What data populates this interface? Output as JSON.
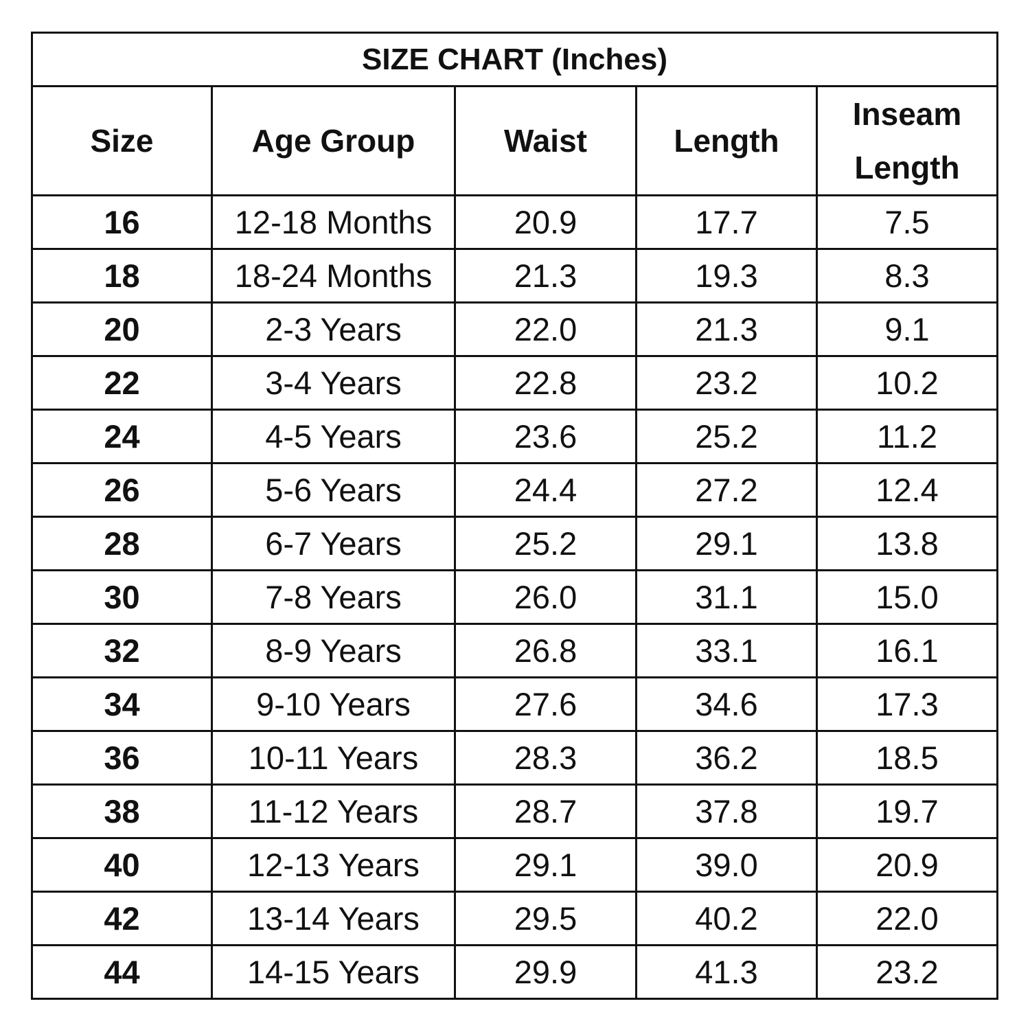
{
  "title": "SIZE CHART (Inches)",
  "columns": [
    "Size",
    "Age Group",
    "Waist",
    "Length",
    "Inseam Length"
  ],
  "rows": [
    {
      "size": "16",
      "age": "12-18 Months",
      "waist": "20.9",
      "length": "17.7",
      "inseam": "7.5"
    },
    {
      "size": "18",
      "age": "18-24 Months",
      "waist": "21.3",
      "length": "19.3",
      "inseam": "8.3"
    },
    {
      "size": "20",
      "age": "2-3 Years",
      "waist": "22.0",
      "length": "21.3",
      "inseam": "9.1"
    },
    {
      "size": "22",
      "age": "3-4 Years",
      "waist": "22.8",
      "length": "23.2",
      "inseam": "10.2"
    },
    {
      "size": "24",
      "age": "4-5 Years",
      "waist": "23.6",
      "length": "25.2",
      "inseam": "11.2"
    },
    {
      "size": "26",
      "age": "5-6 Years",
      "waist": "24.4",
      "length": "27.2",
      "inseam": "12.4"
    },
    {
      "size": "28",
      "age": "6-7 Years",
      "waist": "25.2",
      "length": "29.1",
      "inseam": "13.8"
    },
    {
      "size": "30",
      "age": "7-8 Years",
      "waist": "26.0",
      "length": "31.1",
      "inseam": "15.0"
    },
    {
      "size": "32",
      "age": "8-9 Years",
      "waist": "26.8",
      "length": "33.1",
      "inseam": "16.1"
    },
    {
      "size": "34",
      "age": "9-10 Years",
      "waist": "27.6",
      "length": "34.6",
      "inseam": "17.3"
    },
    {
      "size": "36",
      "age": "10-11 Years",
      "waist": "28.3",
      "length": "36.2",
      "inseam": "18.5"
    },
    {
      "size": "38",
      "age": "11-12 Years",
      "waist": "28.7",
      "length": "37.8",
      "inseam": "19.7"
    },
    {
      "size": "40",
      "age": "12-13 Years",
      "waist": "29.1",
      "length": "39.0",
      "inseam": "20.9"
    },
    {
      "size": "42",
      "age": "13-14 Years",
      "waist": "29.5",
      "length": "40.2",
      "inseam": "22.0"
    },
    {
      "size": "44",
      "age": "14-15 Years",
      "waist": "29.9",
      "length": "41.3",
      "inseam": "23.2"
    }
  ]
}
